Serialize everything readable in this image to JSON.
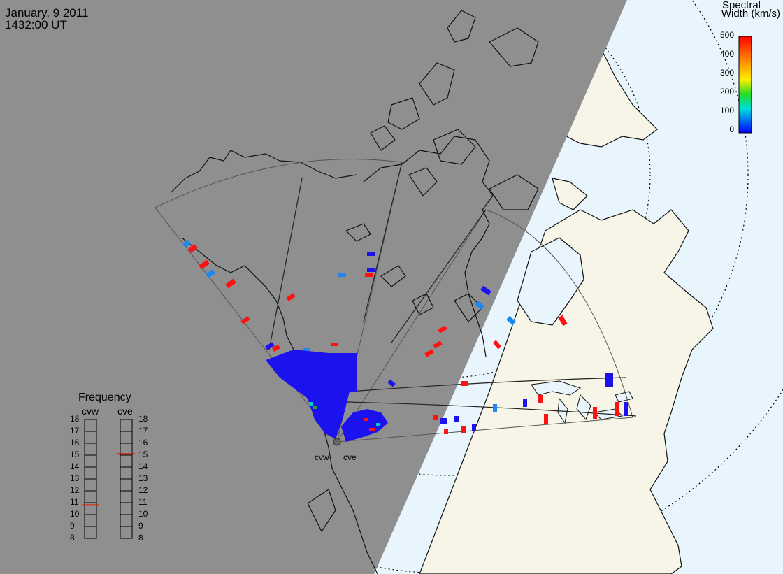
{
  "header": {
    "date": "January, 9 2011",
    "time": "1432:00 UT"
  },
  "colorbar": {
    "title_line1": "Spectral",
    "title_line2": "Width (km/s)",
    "ticks": [
      "500",
      "400",
      "300",
      "200",
      "100",
      "0"
    ],
    "colors": [
      "#ff0000",
      "#ff8800",
      "#ffee00",
      "#22dd22",
      "#00dddd",
      "#0000ff"
    ]
  },
  "frequency_panel": {
    "title": "Frequency",
    "radars": [
      {
        "name": "cvw",
        "value_mhz": 10.8,
        "marker_color": "#dd2200"
      },
      {
        "name": "cve",
        "value_mhz": 15.1,
        "marker_color": "#dd2200"
      }
    ],
    "scale_labels": [
      "18",
      "17",
      "16",
      "15",
      "14",
      "13",
      "12",
      "11",
      "10",
      "9",
      "8"
    ]
  },
  "radar_sites": {
    "west_label": "cvw",
    "east_label": "cve"
  },
  "colors": {
    "night_shade": "#8f8f8f",
    "day_land": "#f6f5e7",
    "day_ocean": "#e8f5fc",
    "coastline": "#111111",
    "fov_outline": "#555555"
  }
}
